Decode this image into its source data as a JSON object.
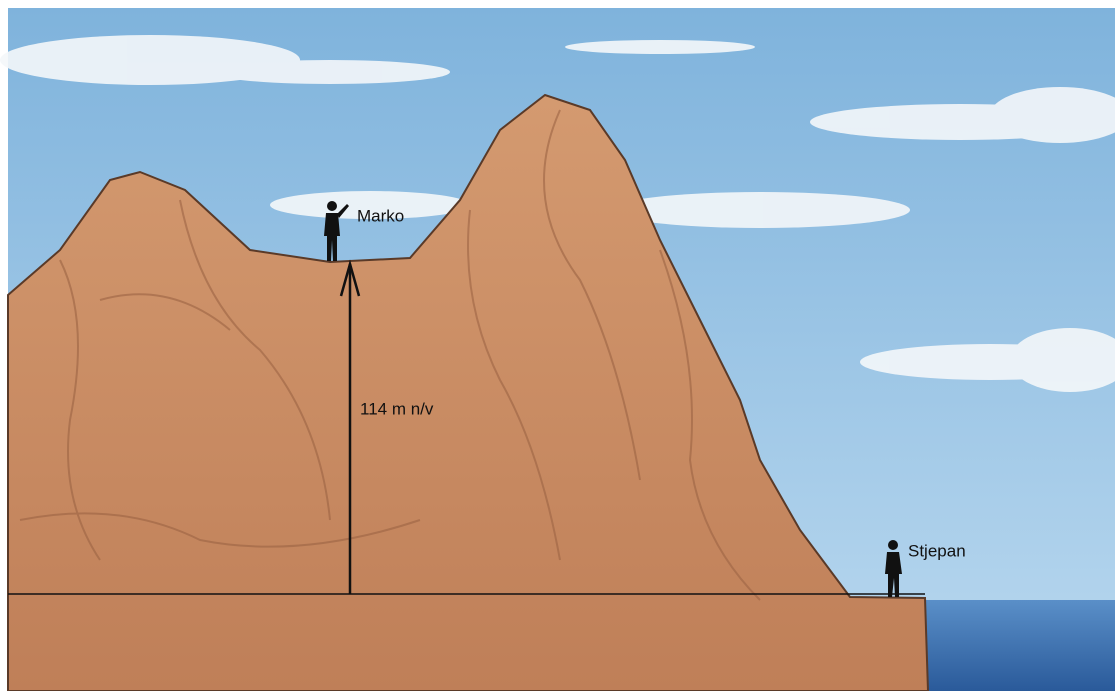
{
  "labels": {
    "marko": "Marko",
    "stjepan": "Stjepan",
    "height": "114 m n/v"
  }
}
